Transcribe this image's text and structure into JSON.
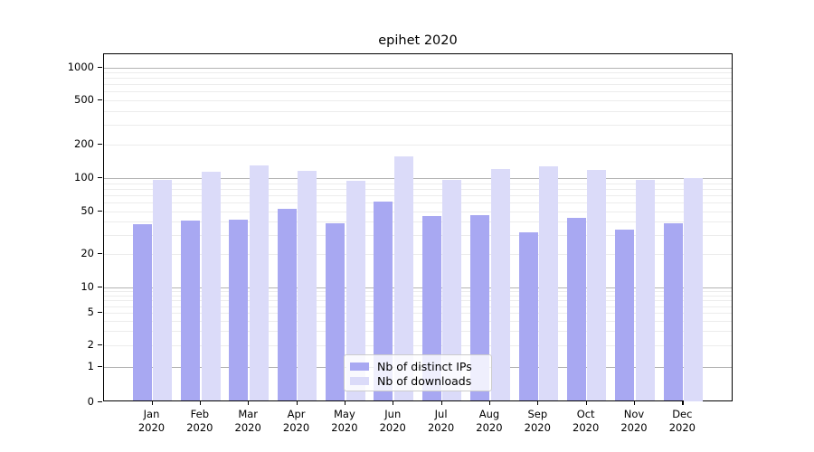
{
  "chart_data": {
    "type": "bar",
    "title": "epihet 2020",
    "categories": [
      [
        "Jan",
        "2020"
      ],
      [
        "Feb",
        "2020"
      ],
      [
        "Mar",
        "2020"
      ],
      [
        "Apr",
        "2020"
      ],
      [
        "May",
        "2020"
      ],
      [
        "Jun",
        "2020"
      ],
      [
        "Jul",
        "2020"
      ],
      [
        "Aug",
        "2020"
      ],
      [
        "Sep",
        "2020"
      ],
      [
        "Oct",
        "2020"
      ],
      [
        "Nov",
        "2020"
      ],
      [
        "Dec",
        "2020"
      ]
    ],
    "series": [
      {
        "name": "Nb of distinct IPs",
        "color": "#a8a8f2",
        "values": [
          38,
          41,
          42,
          53,
          39,
          61,
          45,
          46,
          32,
          44,
          34,
          39
        ]
      },
      {
        "name": "Nb of downloads",
        "color": "#dbdbf9",
        "values": [
          96,
          114,
          130,
          116,
          95,
          158,
          96,
          120,
          127,
          118,
          96,
          100
        ]
      }
    ],
    "xlabel": "",
    "ylabel": "",
    "yscale": "symlog",
    "y_ticks": [
      1000,
      500,
      200,
      100,
      50,
      20,
      10,
      5,
      2,
      1,
      0
    ],
    "ylim": [
      0,
      1300
    ],
    "grid": "horizontal, minor log subdivisions",
    "legend_position": "lower center inside plot",
    "y_axis_anchors": [
      [
        0,
        443.5
      ],
      [
        1,
        405
      ],
      [
        2,
        381
      ],
      [
        5,
        345
      ],
      [
        10,
        316.5
      ],
      [
        20,
        280
      ],
      [
        50,
        233
      ],
      [
        100,
        196
      ],
      [
        200,
        159
      ],
      [
        500,
        110
      ],
      [
        1000,
        73.5
      ]
    ]
  }
}
